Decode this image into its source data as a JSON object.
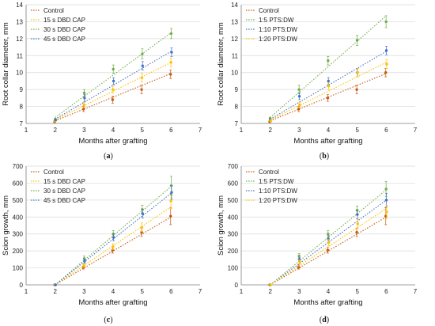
{
  "chart_data": [
    {
      "panel": "(a)",
      "type": "scatter",
      "xlabel": "Months after grafting",
      "ylabel": "Root collar diameter, mm",
      "xlim": [
        1,
        7
      ],
      "ylim": [
        7,
        14
      ],
      "xticks": [
        1,
        2,
        3,
        4,
        5,
        6,
        7
      ],
      "yticks": [
        7,
        8,
        9,
        10,
        11,
        12,
        13,
        14
      ],
      "legend_position": "top-left",
      "series": [
        {
          "name": "Control",
          "color": "#c55a11",
          "x": [
            2,
            3,
            4,
            5,
            6
          ],
          "y": [
            7.1,
            7.85,
            8.4,
            9.0,
            9.9
          ],
          "err": [
            0.05,
            0.15,
            0.2,
            0.25,
            0.25
          ],
          "trend": [
            7.15,
            7.85,
            8.55,
            9.25,
            9.95
          ]
        },
        {
          "name": "15 s DBD CAP",
          "color": "#ffc000",
          "x": [
            2,
            3,
            4,
            5,
            6
          ],
          "y": [
            7.15,
            8.1,
            9.0,
            9.7,
            10.6
          ],
          "err": [
            0.05,
            0.15,
            0.2,
            0.25,
            0.25
          ],
          "trend": [
            7.2,
            8.05,
            8.9,
            9.75,
            10.6
          ]
        },
        {
          "name": "30 s DBD CAP",
          "color": "#70ad47",
          "x": [
            2,
            3,
            4,
            5,
            6
          ],
          "y": [
            7.25,
            8.8,
            10.2,
            11.1,
            12.3
          ],
          "err": [
            0.05,
            0.2,
            0.25,
            0.3,
            0.3
          ],
          "trend": [
            7.35,
            8.6,
            9.85,
            11.1,
            12.35
          ]
        },
        {
          "name": "45 s DBD CAP",
          "color": "#4472c4",
          "x": [
            2,
            3,
            4,
            5,
            6
          ],
          "y": [
            7.2,
            8.5,
            9.5,
            10.4,
            11.2
          ],
          "err": [
            0.05,
            0.2,
            0.2,
            0.25,
            0.25
          ],
          "trend": [
            7.25,
            8.25,
            9.25,
            10.25,
            11.25
          ]
        }
      ]
    },
    {
      "panel": "(b)",
      "type": "scatter",
      "xlabel": "Months after grafting",
      "ylabel": "Root collar diameter, mm",
      "xlim": [
        1,
        7
      ],
      "ylim": [
        7,
        14
      ],
      "xticks": [
        1,
        2,
        3,
        4,
        5,
        6,
        7
      ],
      "yticks": [
        7,
        8,
        9,
        10,
        11,
        12,
        13,
        14
      ],
      "legend_position": "top-left",
      "series": [
        {
          "name": "Control",
          "color": "#c55a11",
          "x": [
            2,
            3,
            4,
            5,
            6
          ],
          "y": [
            7.1,
            7.85,
            8.5,
            9.0,
            10.0
          ],
          "err": [
            0.05,
            0.15,
            0.2,
            0.25,
            0.25
          ],
          "trend": [
            7.15,
            7.85,
            8.55,
            9.25,
            9.95
          ]
        },
        {
          "name": "1:5   PTS:DW",
          "color": "#70ad47",
          "x": [
            2,
            3,
            4,
            5,
            6
          ],
          "y": [
            7.3,
            9.0,
            10.7,
            11.9,
            13.0
          ],
          "err": [
            0.05,
            0.25,
            0.25,
            0.3,
            0.35
          ],
          "trend": [
            7.35,
            8.85,
            10.35,
            11.85,
            13.35
          ]
        },
        {
          "name": "1:10 PTS:DW",
          "color": "#4472c4",
          "x": [
            2,
            3,
            4,
            5,
            6
          ],
          "y": [
            7.2,
            8.6,
            9.5,
            10.0,
            11.3
          ],
          "err": [
            0.05,
            0.2,
            0.2,
            0.25,
            0.25
          ],
          "trend": [
            7.25,
            8.25,
            9.25,
            10.25,
            11.25
          ]
        },
        {
          "name": "1:20 PTS:DW",
          "color": "#ffc000",
          "x": [
            2,
            3,
            4,
            5,
            6
          ],
          "y": [
            7.15,
            8.1,
            9.2,
            10.0,
            10.5
          ],
          "err": [
            0.05,
            0.15,
            0.2,
            0.25,
            0.25
          ],
          "trend": [
            7.2,
            8.05,
            8.9,
            9.75,
            10.6
          ]
        }
      ]
    },
    {
      "panel": "(c)",
      "type": "scatter",
      "xlabel": "Months after grafting",
      "ylabel": "Scion growth, mm",
      "xlim": [
        1,
        7
      ],
      "ylim": [
        0,
        700
      ],
      "xticks": [
        1,
        2,
        3,
        4,
        5,
        6,
        7
      ],
      "yticks": [
        0,
        100,
        200,
        300,
        400,
        500,
        600,
        700
      ],
      "legend_position": "top-left",
      "series": [
        {
          "name": "Control",
          "color": "#c55a11",
          "x": [
            2,
            3,
            4,
            5,
            6
          ],
          "y": [
            0,
            105,
            205,
            310,
            405
          ],
          "err": [
            0,
            12,
            18,
            25,
            50
          ],
          "trend": [
            0,
            100,
            200,
            300,
            400
          ]
        },
        {
          "name": "15 s DBD CAP",
          "color": "#ffc000",
          "x": [
            2,
            3,
            4,
            5,
            6
          ],
          "y": [
            0,
            115,
            225,
            340,
            495
          ],
          "err": [
            0,
            12,
            18,
            25,
            45
          ],
          "trend": [
            0,
            115,
            230,
            345,
            460
          ]
        },
        {
          "name": "30 s DBD CAP",
          "color": "#70ad47",
          "x": [
            2,
            3,
            4,
            5,
            6
          ],
          "y": [
            0,
            155,
            300,
            445,
            585
          ],
          "err": [
            0,
            15,
            20,
            25,
            55
          ],
          "trend": [
            0,
            145,
            290,
            435,
            580
          ]
        },
        {
          "name": "45 s DBD CAP",
          "color": "#4472c4",
          "x": [
            2,
            3,
            4,
            5,
            6
          ],
          "y": [
            0,
            140,
            280,
            420,
            545
          ],
          "err": [
            0,
            12,
            20,
            25,
            40
          ],
          "trend": [
            0,
            135,
            270,
            405,
            540
          ]
        }
      ]
    },
    {
      "panel": "(d)",
      "type": "scatter",
      "xlabel": "Months after grafting",
      "ylabel": "Scion growth, mm",
      "xlim": [
        1,
        7
      ],
      "ylim": [
        0,
        700
      ],
      "xticks": [
        1,
        2,
        3,
        4,
        5,
        6,
        7
      ],
      "yticks": [
        0,
        100,
        200,
        300,
        400,
        500,
        600,
        700
      ],
      "legend_position": "top-left",
      "series": [
        {
          "name": "Control",
          "color": "#c55a11",
          "x": [
            2,
            3,
            4,
            5,
            6
          ],
          "y": [
            0,
            105,
            205,
            310,
            405
          ],
          "err": [
            0,
            12,
            18,
            25,
            50
          ],
          "trend": [
            0,
            100,
            200,
            300,
            400
          ]
        },
        {
          "name": "1:5   PTS:DW",
          "color": "#70ad47",
          "x": [
            2,
            3,
            4,
            5,
            6
          ],
          "y": [
            0,
            170,
            300,
            440,
            565
          ],
          "err": [
            0,
            15,
            20,
            25,
            45
          ],
          "trend": [
            0,
            140,
            280,
            420,
            560
          ]
        },
        {
          "name": "1:10 PTS:DW",
          "color": "#4472c4",
          "x": [
            2,
            3,
            4,
            5,
            6
          ],
          "y": [
            0,
            150,
            270,
            415,
            500
          ],
          "err": [
            0,
            12,
            20,
            25,
            40
          ],
          "trend": [
            0,
            125,
            250,
            375,
            500
          ]
        },
        {
          "name": "1:20 PTS:DW",
          "color": "#ffc000",
          "x": [
            2,
            3,
            4,
            5,
            6
          ],
          "y": [
            0,
            135,
            250,
            360,
            430
          ],
          "err": [
            0,
            12,
            18,
            25,
            40
          ],
          "trend": [
            0,
            112,
            225,
            337,
            450
          ]
        }
      ]
    }
  ],
  "captions": [
    {
      "open": "(",
      "letter": "a",
      "close": ")"
    },
    {
      "open": "(",
      "letter": "b",
      "close": ")"
    },
    {
      "open": "(",
      "letter": "c",
      "close": ")"
    },
    {
      "open": "(",
      "letter": "d",
      "close": ")"
    }
  ]
}
